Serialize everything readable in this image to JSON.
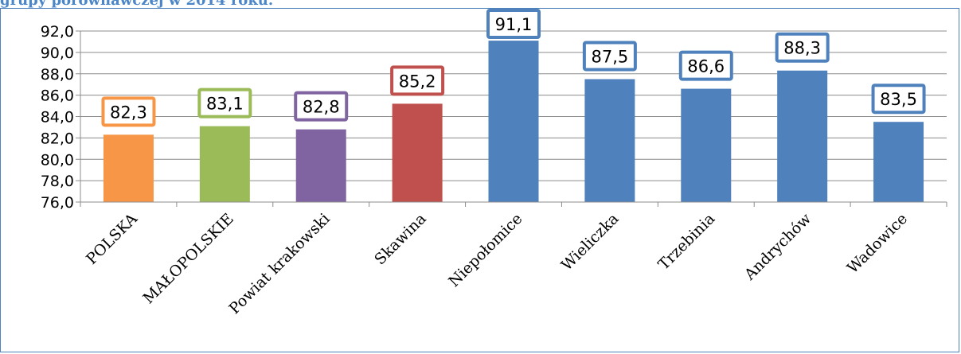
{
  "caption": "grupy porównawczej w 2014 roku.",
  "chart_data": {
    "type": "bar",
    "title": "",
    "xlabel": "",
    "ylabel": "",
    "ylim": [
      76,
      92
    ],
    "ytick_step": 2,
    "ytick_labels": [
      "76,0",
      "78,0",
      "80,0",
      "82,0",
      "84,0",
      "86,0",
      "88,0",
      "90,0",
      "92,0"
    ],
    "grid": true,
    "legend": "none",
    "categories": [
      "POLSKA",
      "MAŁOPOLSKIE",
      "Powiat krakowski",
      "Skawina",
      "Niepołomice",
      "Wieliczka",
      "Trzebinia",
      "Andrychów",
      "Wadowice"
    ],
    "values": [
      82.3,
      83.1,
      82.8,
      85.2,
      91.1,
      87.5,
      86.6,
      88.3,
      83.5
    ],
    "value_labels": [
      "82,3",
      "83,1",
      "82,8",
      "85,2",
      "91,1",
      "87,5",
      "86,6",
      "88,3",
      "83,5"
    ],
    "colors": [
      "#f79646",
      "#9bbb59",
      "#8064a2",
      "#c0504d",
      "#4f81bd",
      "#4f81bd",
      "#4f81bd",
      "#4f81bd",
      "#4f81bd"
    ]
  }
}
